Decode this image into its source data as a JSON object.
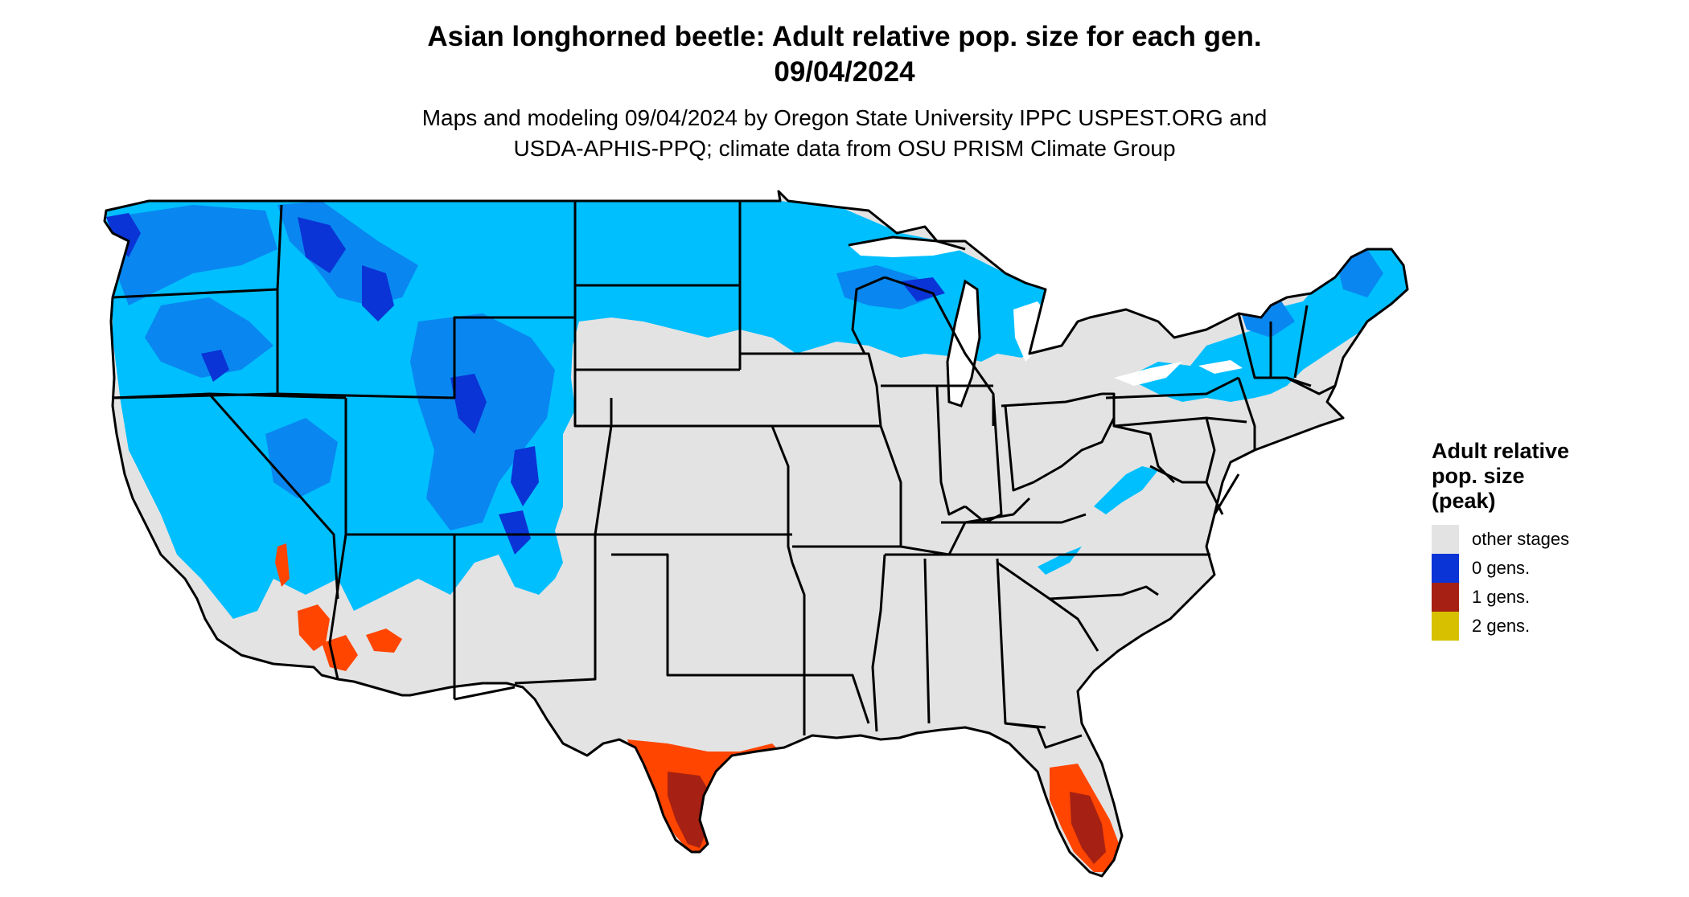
{
  "title": {
    "line1": "Asian longhorned beetle: Adult relative pop. size for each gen.",
    "line2": "09/04/2024"
  },
  "subtitle": {
    "line1": "Maps and modeling 09/04/2024 by Oregon State University IPPC USPEST.ORG and",
    "line2": "USDA-APHIS-PPQ; climate data from OSU PRISM Climate Group"
  },
  "legend": {
    "title_line1": "Adult relative",
    "title_line2": "pop. size",
    "title_line3": "(peak)",
    "items": [
      {
        "label": "other stages",
        "color": "#e3e3e3"
      },
      {
        "label": "0 gens.",
        "color": "#0a34d6"
      },
      {
        "label": "1 gens.",
        "color": "#a62114"
      },
      {
        "label": "2 gens.",
        "color": "#d6c000"
      }
    ]
  },
  "map_colors": {
    "land": "#e3e3e3",
    "zero_gen_light": "#00bfff",
    "zero_gen_mid": "#0a86f0",
    "zero_gen_dark": "#0a34d6",
    "one_gen_light": "#ff4500",
    "one_gen_dark": "#a62114",
    "boundary": "#000000"
  }
}
